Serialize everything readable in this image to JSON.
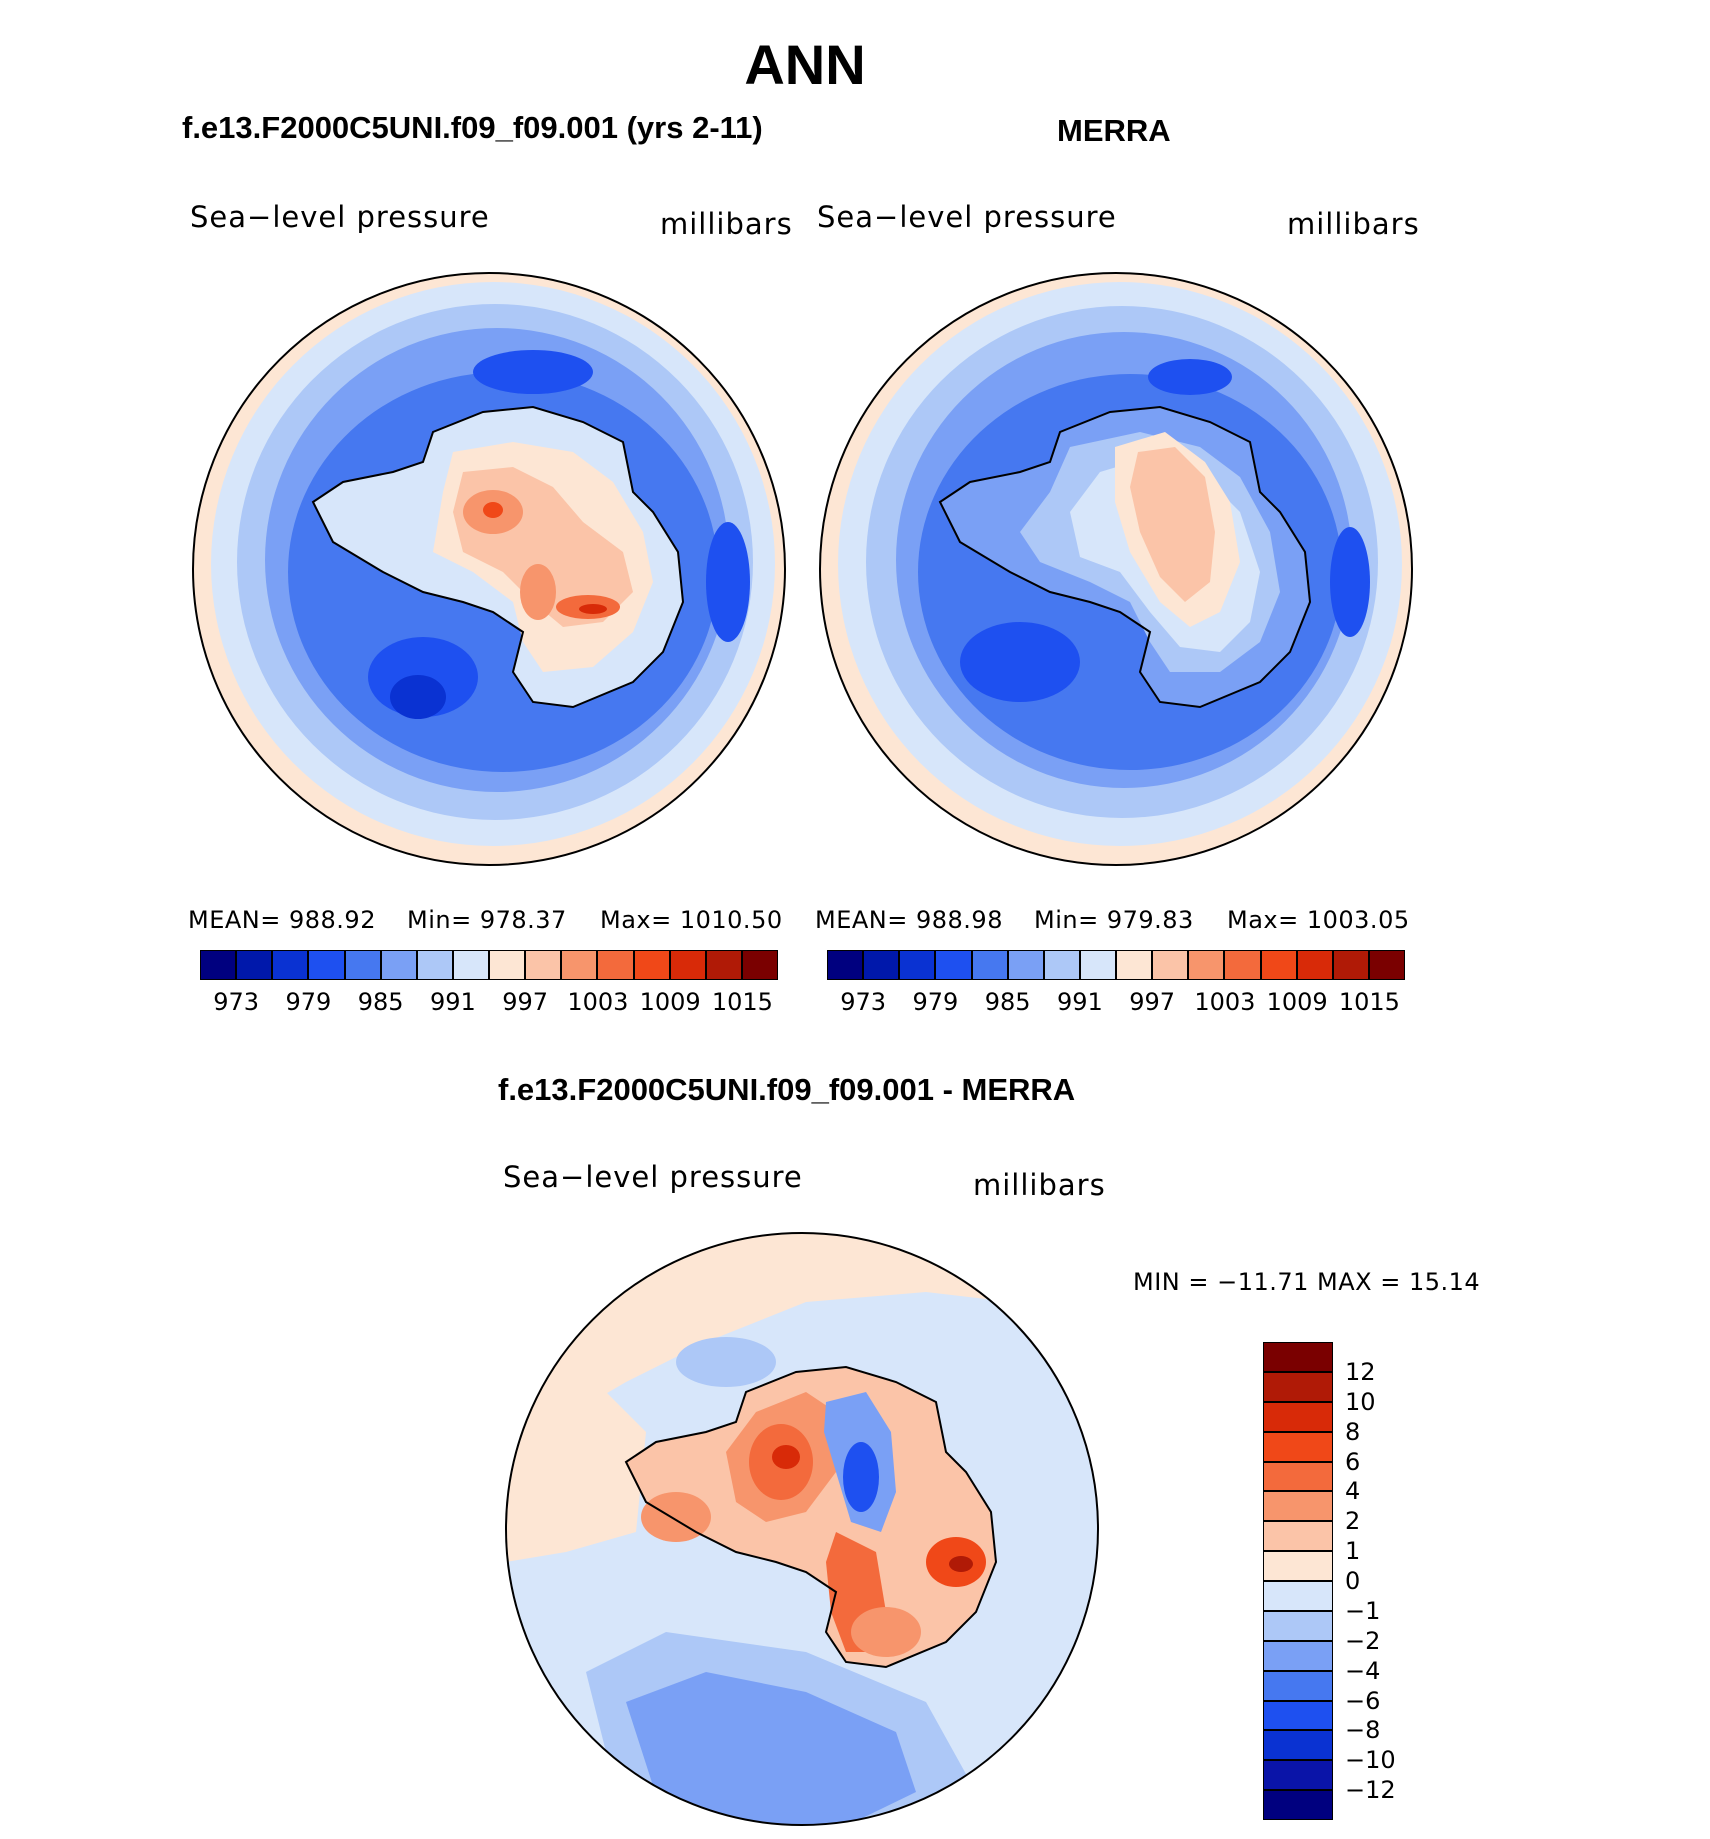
{
  "figure": {
    "season": "ANN",
    "panel_titles": [
      "f.e13.F2000C5UNI.f09_f09.001 (yrs 2-11)",
      "MERRA"
    ],
    "diff_title": "f.e13.F2000C5UNI.f09_f09.001 - MERRA",
    "field_label": "Sea−level pressure",
    "units_label": "millibars"
  },
  "panels": [
    {
      "mean": "MEAN=  988.92",
      "min": "Min=  978.37",
      "max": "Max=  1010.50"
    },
    {
      "mean": "MEAN=  988.98",
      "min": "Min=  979.83",
      "max": "Max=  1003.05"
    }
  ],
  "diff_stats": "MIN  =  −11.71  MAX  =    15.14",
  "colors": {
    "abs_scale": [
      "#00007f",
      "#0018ab",
      "#0a32d2",
      "#1e50f0",
      "#4678f0",
      "#7aa0f5",
      "#adc8f7",
      "#d7e6fa",
      "#fde6d4",
      "#fbc4a8",
      "#f7956c",
      "#f36a3c",
      "#f04818",
      "#d82a08",
      "#b01a06",
      "#7a0000"
    ],
    "diff_scale": [
      "#00007f",
      "#0a14a8",
      "#0a32d2",
      "#1e50f0",
      "#4678f0",
      "#7aa0f5",
      "#adc8f7",
      "#d7e6fa",
      "#fde6d4",
      "#fbc4a8",
      "#f7956c",
      "#f36a3c",
      "#f04818",
      "#d82a08",
      "#b01a06",
      "#7a0000"
    ],
    "land_outline": "#000000"
  },
  "chart_data": [
    {
      "type": "heatmap",
      "title": "f.e13.F2000C5UNI.f09_f09.001 (yrs 2-11)",
      "variable": "Sea−level pressure",
      "units": "millibars",
      "projection": "south polar stereographic",
      "colorbar_ticks": [
        "973",
        "979",
        "985",
        "991",
        "997",
        "1003",
        "1009",
        "1015"
      ],
      "mean": 988.92,
      "min": 978.37,
      "max": 1010.5
    },
    {
      "type": "heatmap",
      "title": "MERRA",
      "variable": "Sea−level pressure",
      "units": "millibars",
      "projection": "south polar stereographic",
      "colorbar_ticks": [
        "973",
        "979",
        "985",
        "991",
        "997",
        "1003",
        "1009",
        "1015"
      ],
      "mean": 988.98,
      "min": 979.83,
      "max": 1003.05
    },
    {
      "type": "heatmap",
      "title": "f.e13.F2000C5UNI.f09_f09.001 - MERRA",
      "variable": "Sea−level pressure",
      "units": "millibars",
      "projection": "south polar stereographic",
      "colorbar_ticks": [
        "12",
        "10",
        "8",
        "6",
        "4",
        "2",
        "1",
        "0",
        "−1",
        "−2",
        "−4",
        "−6",
        "−8",
        "−10",
        "−12"
      ],
      "min": -11.71,
      "max": 15.14
    }
  ]
}
